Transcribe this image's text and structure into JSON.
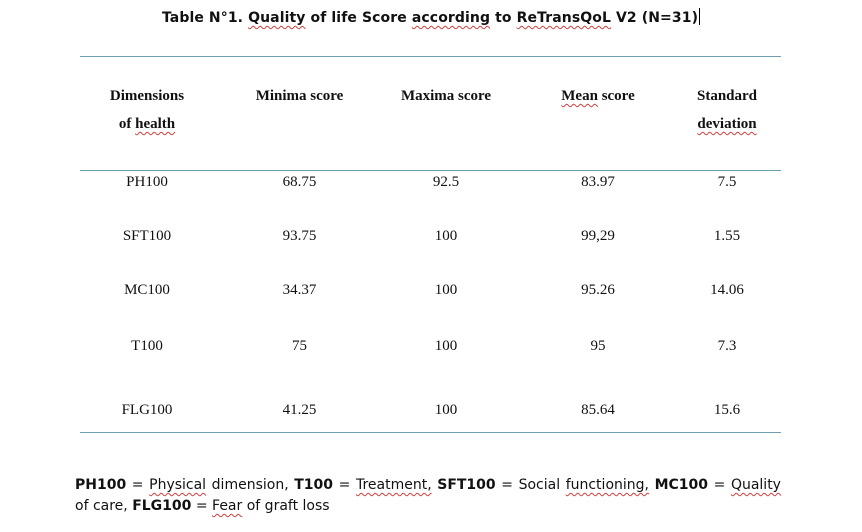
{
  "title": {
    "prefix": "Table N°1.",
    "w1": "Quality",
    "t1": "of life Score",
    "w2": "according",
    "t2": "to",
    "w3": "ReTransQoL",
    "t3": "V2 (N=31)"
  },
  "table": {
    "headers": {
      "dimensions_line1": "Dimensions",
      "dimensions_line2_pre": "of",
      "dimensions_line2_w": "health",
      "minima": "Minima score",
      "maxima": "Maxima score",
      "mean_w": "Mean",
      "mean_rest": "score",
      "sd_line1": "Standard",
      "sd_line2": "deviation"
    },
    "rows": [
      {
        "dimension": "PH100",
        "min": "68.75",
        "max": "92.5",
        "mean": "83.97",
        "sd": "7.5"
      },
      {
        "dimension": "SFT100",
        "min": "93.75",
        "max": "100",
        "mean": "99,29",
        "sd": "1.55"
      },
      {
        "dimension": "MC100",
        "min": "34.37",
        "max": "100",
        "mean": "95.26",
        "sd": "14.06"
      },
      {
        "dimension": "T100",
        "min": "75",
        "max": "100",
        "mean": "95",
        "sd": "7.3"
      },
      {
        "dimension": "FLG100",
        "min": "41.25",
        "max": "100",
        "mean": "85.64",
        "sd": "15.6"
      }
    ]
  },
  "footnote": {
    "k1": "PH100",
    "v1": "Physical",
    "v1b": "dimension,",
    "k2": "T100",
    "v2": "Treatment,",
    "k3": "SFT100",
    "v3a": "Social",
    "v3b": "functioning,",
    "k4": "MC100",
    "v4a": "Quality",
    "v4b": "of care,",
    "k5": "FLG100",
    "v5a": "Fear",
    "v5b": "of graft loss"
  },
  "colors": {
    "rule": "#6f9fb3",
    "spellcheck": "#d04040"
  }
}
